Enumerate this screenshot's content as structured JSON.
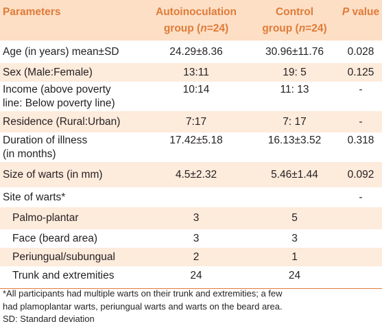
{
  "header": {
    "col0": "Parameters",
    "col1_line1": "Autoinoculation",
    "col1_line2_a": "group (",
    "col1_line2_n": "n",
    "col1_line2_b": "=24)",
    "col2_line1": "Control",
    "col2_line2_a": "group (",
    "col2_line2_n": "n",
    "col2_line2_b": "=24)",
    "col3_p": "P",
    "col3_rest": " value"
  },
  "rows": [
    {
      "l1": "Age (in years) mean±SD",
      "l2": "",
      "a": "24.29±8.36",
      "c": "30.96±11.76",
      "p": "0.028"
    },
    {
      "l1": "Sex (Male:Female)",
      "l2": "",
      "a": "13:11",
      "c": "19: 5",
      "p": "0.125"
    },
    {
      "l1": "Income (above poverty",
      "l2": "line: Below poverty line)",
      "a": "10:14",
      "c": "11: 13",
      "p": "-"
    },
    {
      "l1": "Residence (Rural:Urban)",
      "l2": "",
      "a": "7:17",
      "c": "7: 17",
      "p": "-"
    },
    {
      "l1": "Duration of illness",
      "l2": "(in months)",
      "a": "17.42±5.18",
      "c": "16.13±3.52",
      "p": "0.318"
    },
    {
      "l1": "Size of warts (in mm)",
      "l2": "",
      "a": "4.5±2.32",
      "c": "5.46±1.44",
      "p": "0.092"
    },
    {
      "l1": "Site of warts*",
      "l2": "",
      "a": "",
      "c": "",
      "p": "-"
    },
    {
      "l1": "Palmo-plantar",
      "l2": "",
      "a": "3",
      "c": "5",
      "p": ""
    },
    {
      "l1": "Face (beard area)",
      "l2": "",
      "a": "3",
      "c": "3",
      "p": ""
    },
    {
      "l1": "Periungual/subungual",
      "l2": "",
      "a": "2",
      "c": "1",
      "p": ""
    },
    {
      "l1": "Trunk and extremities",
      "l2": "",
      "a": "24",
      "c": "24",
      "p": ""
    }
  ],
  "footnotes": {
    "note1_line1": "*All participants had multiple warts on their trunk and extremities; a few",
    "note1_line2": "had plamoplantar warts, periungual warts and warts on the beard area.",
    "note2": "SD: Standard deviation"
  }
}
